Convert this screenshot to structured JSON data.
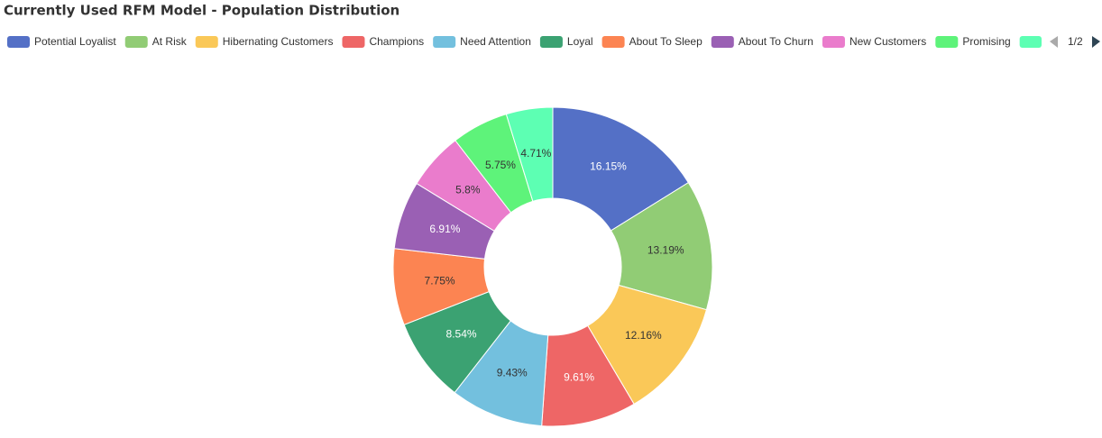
{
  "chart_data": {
    "type": "donut",
    "title": "Currently Used RFM Model - Population Distribution",
    "categories": [
      "Potential Loyalist",
      "At Risk",
      "Hibernating Customers",
      "Champions",
      "Need Attention",
      "Loyal",
      "About To Sleep",
      "About To Churn",
      "New Customers",
      "Promising",
      null
    ],
    "values": [
      16.15,
      13.19,
      12.16,
      9.61,
      9.43,
      8.54,
      7.75,
      6.91,
      5.8,
      5.75,
      4.71
    ],
    "value_labels": [
      "16.15%",
      "13.19%",
      "12.16%",
      "9.61%",
      "9.43%",
      "8.54%",
      "7.75%",
      "6.91%",
      "5.8%",
      "5.75%",
      "4.71%"
    ],
    "colors": [
      "#5470c6",
      "#91cc75",
      "#fac858",
      "#ee6666",
      "#73c0de",
      "#3ba272",
      "#fc8452",
      "#9a60b4",
      "#ea7ccc",
      "#5ef37a",
      "#5dffb3"
    ],
    "legend_page": "1/2"
  }
}
